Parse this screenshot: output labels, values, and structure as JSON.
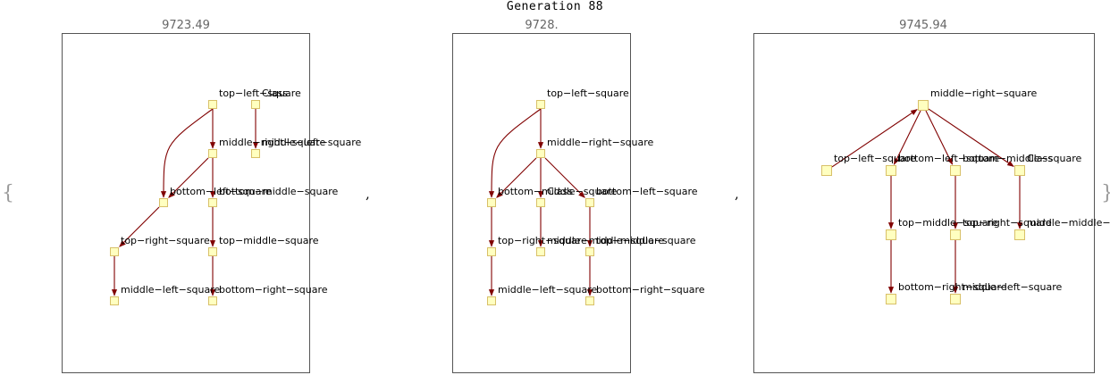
{
  "title": "Generation 88",
  "brace_open": "{",
  "brace_close": "}",
  "separator": ",",
  "panels": [
    {
      "score": "9723.49",
      "nodes": [
        {
          "id": "a1",
          "label": "top−left−square"
        },
        {
          "id": "a2",
          "label": "Class"
        },
        {
          "id": "a3",
          "label": "middle−right−square"
        },
        {
          "id": "a4",
          "label": "middle−left−square"
        },
        {
          "id": "a5",
          "label": "bottom−middle−square"
        },
        {
          "id": "a6",
          "label": "bottom−left−square"
        },
        {
          "id": "a7",
          "label": "top−right−square"
        },
        {
          "id": "a8",
          "label": "top−middle−square"
        },
        {
          "id": "a9",
          "label": "middle−left−square"
        },
        {
          "id": "a10",
          "label": "bottom−right−square"
        }
      ]
    },
    {
      "score": "9728.",
      "nodes": [
        {
          "id": "b1",
          "label": "top−left−square"
        },
        {
          "id": "b2",
          "label": "middle−right−square"
        },
        {
          "id": "b3",
          "label": "bottom−middle−square"
        },
        {
          "id": "b4",
          "label": "Class"
        },
        {
          "id": "b5",
          "label": "bottom−left−square"
        },
        {
          "id": "b6",
          "label": "top−right−square"
        },
        {
          "id": "b7",
          "label": "middle−middle−square"
        },
        {
          "id": "b8",
          "label": "top−middle−square"
        },
        {
          "id": "b9",
          "label": "middle−left−square"
        },
        {
          "id": "b10",
          "label": "bottom−right−square"
        }
      ]
    },
    {
      "score": "9745.94",
      "nodes": [
        {
          "id": "c1",
          "label": "middle−right−square"
        },
        {
          "id": "c2",
          "label": "top−left−square"
        },
        {
          "id": "c3",
          "label": "bottom−left−square"
        },
        {
          "id": "c4",
          "label": "bottom−middle−square"
        },
        {
          "id": "c5",
          "label": "Class"
        },
        {
          "id": "c6",
          "label": "top−middle−square"
        },
        {
          "id": "c7",
          "label": "top−right−square"
        },
        {
          "id": "c8",
          "label": "middle−middle−square"
        },
        {
          "id": "c9",
          "label": "bottom−right−square"
        },
        {
          "id": "c10",
          "label": "middle−left−square"
        }
      ]
    }
  ],
  "edges": [
    [
      "a1",
      "a3"
    ],
    [
      "a1",
      "a6"
    ],
    [
      "a2",
      "a4"
    ],
    [
      "a3",
      "a5"
    ],
    [
      "a3",
      "a6"
    ],
    [
      "a6",
      "a7"
    ],
    [
      "a5",
      "a8"
    ],
    [
      "a7",
      "a9"
    ],
    [
      "a8",
      "a10"
    ],
    [
      "b1",
      "b2"
    ],
    [
      "b1",
      "b3"
    ],
    [
      "b2",
      "b3"
    ],
    [
      "b2",
      "b4"
    ],
    [
      "b2",
      "b5"
    ],
    [
      "b3",
      "b6"
    ],
    [
      "b4",
      "b7"
    ],
    [
      "b5",
      "b8"
    ],
    [
      "b6",
      "b9"
    ],
    [
      "b8",
      "b10"
    ],
    [
      "c2",
      "c1"
    ],
    [
      "c1",
      "c3"
    ],
    [
      "c1",
      "c4"
    ],
    [
      "c1",
      "c5"
    ],
    [
      "c3",
      "c6"
    ],
    [
      "c4",
      "c7"
    ],
    [
      "c5",
      "c8"
    ],
    [
      "c6",
      "c9"
    ],
    [
      "c7",
      "c10"
    ]
  ],
  "colors": {
    "edge": "#800000",
    "node_fill": "#ffffc0",
    "node_stroke": "#d8c068",
    "frame": "#555555"
  }
}
